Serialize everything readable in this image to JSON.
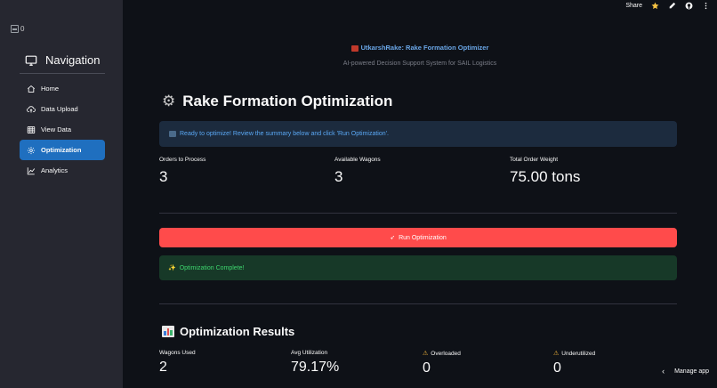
{
  "sidebar": {
    "logo_alt": "0",
    "nav_title": "Navigation",
    "items": [
      {
        "label": "Home",
        "icon": "home-icon"
      },
      {
        "label": "Data Upload",
        "icon": "cloud-upload-icon"
      },
      {
        "label": "View Data",
        "icon": "table-icon"
      },
      {
        "label": "Optimization",
        "icon": "gear-icon",
        "active": true
      },
      {
        "label": "Analytics",
        "icon": "chart-line-icon"
      }
    ]
  },
  "toolbar": {
    "share_label": "Share",
    "icons": [
      "star-icon",
      "pencil-icon",
      "github-icon",
      "more-icon"
    ]
  },
  "header": {
    "app_title": "UtkarshRake: Rake Formation Optimizer",
    "app_subtitle": "AI-powered Decision Support System for SAIL Logistics"
  },
  "main": {
    "page_title": "Rake Formation Optimization",
    "info_text": "Ready to optimize! Review the summary below and click 'Run Optimization'.",
    "metrics": [
      {
        "label": "Orders to Process",
        "value": "3"
      },
      {
        "label": "Available Wagons",
        "value": "3"
      },
      {
        "label": "Total Order Weight",
        "value": "75.00 tons"
      }
    ],
    "run_button": "Run Optimization",
    "success_text": "Optimization Complete!",
    "results_title": "Optimization Results",
    "results": [
      {
        "label": "Wagons Used",
        "value": "2"
      },
      {
        "label": "Avg Utilization",
        "value": "79.17%"
      },
      {
        "label": "Overloaded",
        "value": "0"
      },
      {
        "label": "Underutilized",
        "value": "0"
      }
    ]
  },
  "footer": {
    "manage_label": "Manage app"
  },
  "colors": {
    "background": "#0e1117",
    "sidebar": "#262730",
    "active_nav": "#1f6fbf",
    "primary_button": "#ff4b4b",
    "info_bg": "#1c2b3e",
    "success_bg": "#173928",
    "success_text": "#3dd56d",
    "link_blue": "#6aa7e8"
  }
}
